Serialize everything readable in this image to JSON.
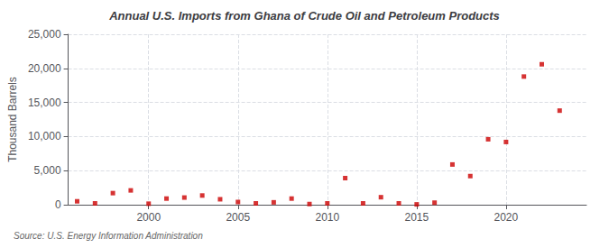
{
  "chart_data": {
    "type": "scatter",
    "title": "Annual U.S. Imports from Ghana of Crude Oil and Petroleum Products",
    "ylabel": "Thousand Barrels",
    "annotations": [
      "Source: U.S. Energy Information Administration"
    ],
    "x": [
      1996,
      1997,
      1998,
      1999,
      2000,
      2001,
      2002,
      2003,
      2004,
      2005,
      2006,
      2007,
      2008,
      2009,
      2010,
      2011,
      2012,
      2013,
      2014,
      2015,
      2016,
      2017,
      2018,
      2019,
      2020,
      2021,
      2022,
      2023
    ],
    "values": [
      500,
      200,
      1700,
      2100,
      150,
      900,
      1050,
      1350,
      800,
      400,
      200,
      350,
      900,
      100,
      200,
      3900,
      200,
      1100,
      200,
      50,
      300,
      5900,
      4200,
      9600,
      9200,
      18800,
      20600,
      13800
    ],
    "color": "#cc0000",
    "marker": "square",
    "xlim": [
      1995.5,
      2024.5
    ],
    "xticks": [
      2000,
      2005,
      2010,
      2015,
      2020
    ],
    "ylim": [
      0,
      25000
    ],
    "yticks": [
      0,
      {
        "value": 5000,
        "label": "5,000"
      },
      {
        "value": 10000,
        "label": "10,000"
      },
      {
        "value": 15000,
        "label": "15,000"
      },
      {
        "value": 20000,
        "label": "20,000"
      },
      {
        "value": 25000,
        "label": "25,000"
      }
    ],
    "grid": true
  }
}
